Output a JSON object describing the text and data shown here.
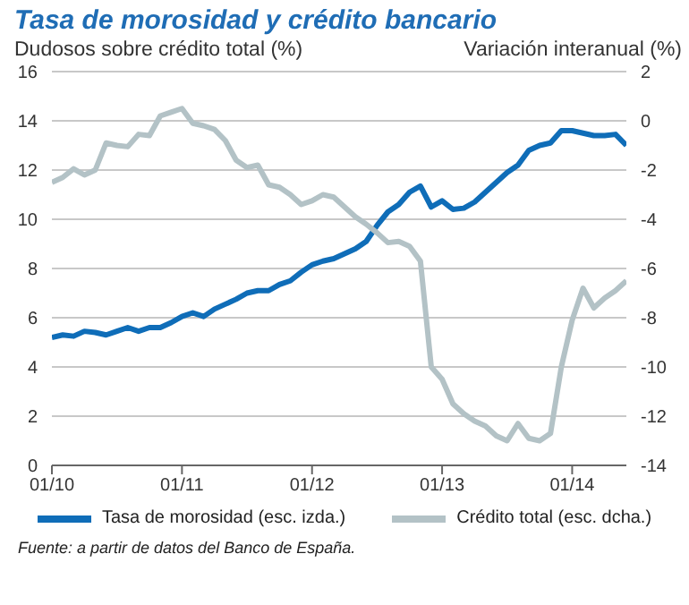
{
  "chart_data": {
    "type": "line",
    "title": "Tasa de morosidad y crédito bancario",
    "ylabel": "Dudosos sobre crédito total (%)",
    "y2label": "Variación interanual (%)",
    "x": [
      "2010-01",
      "2010-02",
      "2010-03",
      "2010-04",
      "2010-05",
      "2010-06",
      "2010-07",
      "2010-08",
      "2010-09",
      "2010-10",
      "2010-11",
      "2010-12",
      "2011-01",
      "2011-02",
      "2011-03",
      "2011-04",
      "2011-05",
      "2011-06",
      "2011-07",
      "2011-08",
      "2011-09",
      "2011-10",
      "2011-11",
      "2011-12",
      "2012-01",
      "2012-02",
      "2012-03",
      "2012-04",
      "2012-05",
      "2012-06",
      "2012-07",
      "2012-08",
      "2012-09",
      "2012-10",
      "2012-11",
      "2012-12",
      "2013-01",
      "2013-02",
      "2013-03",
      "2013-04",
      "2013-05",
      "2013-06",
      "2013-07",
      "2013-08",
      "2013-09",
      "2013-10",
      "2013-11",
      "2013-12",
      "2014-01",
      "2014-02",
      "2014-03",
      "2014-04",
      "2014-05",
      "2014-06"
    ],
    "series": [
      {
        "name": "Tasa de morosidad (esc. izda.)",
        "color": "#0f6db8",
        "values": [
          5.2,
          5.3,
          5.25,
          5.45,
          5.4,
          5.3,
          5.45,
          5.6,
          5.45,
          5.6,
          5.6,
          5.8,
          6.05,
          6.2,
          6.05,
          6.35,
          6.55,
          6.75,
          7.0,
          7.1,
          7.1,
          7.35,
          7.5,
          7.85,
          8.15,
          8.3,
          8.4,
          8.6,
          8.8,
          9.1,
          9.75,
          10.3,
          10.6,
          11.1,
          11.35,
          10.5,
          10.75,
          10.4,
          10.45,
          10.7,
          11.1,
          11.5,
          11.9,
          12.2,
          12.8,
          13.0,
          13.1,
          13.6,
          13.6,
          13.5,
          13.4,
          13.4,
          13.45,
          13.0
        ]
      },
      {
        "name": "Crédito total (esc. dcha.)",
        "color": "#b3c2c6",
        "axis": "y2",
        "values": [
          -2.5,
          -2.3,
          -1.95,
          -2.2,
          -2.0,
          -0.9,
          -1.0,
          -1.05,
          -0.55,
          -0.6,
          0.2,
          0.35,
          0.5,
          -0.1,
          -0.2,
          -0.35,
          -0.8,
          -1.6,
          -1.9,
          -1.8,
          -2.6,
          -2.7,
          -3.0,
          -3.4,
          -3.25,
          -3.0,
          -3.1,
          -3.5,
          -3.9,
          -4.2,
          -4.55,
          -4.95,
          -4.9,
          -5.1,
          -5.7,
          -10.0,
          -10.5,
          -11.5,
          -11.9,
          -12.2,
          -12.4,
          -12.8,
          -13.0,
          -12.3,
          -12.9,
          -13.0,
          -12.7,
          -10.0,
          -8.1,
          -6.8,
          -7.6,
          -7.2,
          -6.9,
          -6.5
        ]
      }
    ],
    "xlim": [
      "2010-01",
      "2014-06"
    ],
    "xticks": [
      {
        "value": "2010-01",
        "label": "01/10"
      },
      {
        "value": "2011-01",
        "label": "01/11"
      },
      {
        "value": "2012-01",
        "label": "01/12"
      },
      {
        "value": "2013-01",
        "label": "01/13"
      },
      {
        "value": "2014-01",
        "label": "01/14"
      }
    ],
    "ylim": [
      0,
      16
    ],
    "yticks": [
      0,
      2,
      4,
      6,
      8,
      10,
      12,
      14,
      16
    ],
    "y2lim": [
      -14,
      2
    ],
    "y2ticks": [
      -14,
      -12,
      -10,
      -8,
      -6,
      -4,
      -2,
      0,
      2
    ],
    "grid": "y",
    "legend": "bottom",
    "marker": "none",
    "line_style": "solid",
    "annotations": [
      "Fuente: a partir de datos del Banco de España."
    ]
  }
}
